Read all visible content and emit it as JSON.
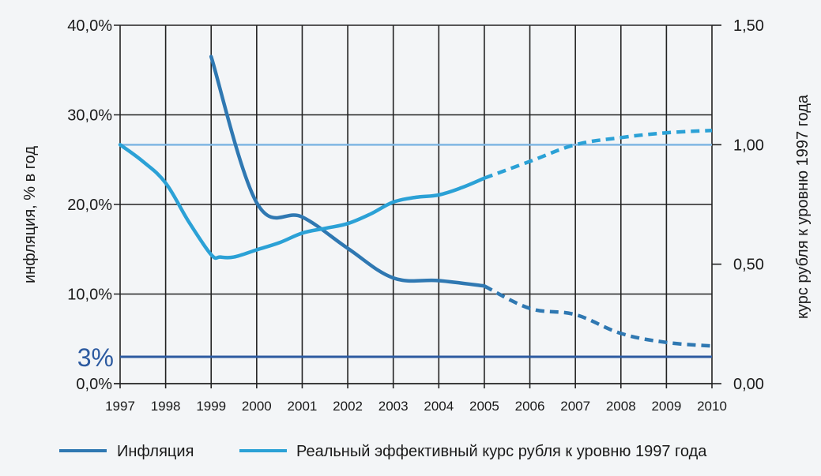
{
  "colors": {
    "background": "#f3f5f7",
    "grid": "#222222",
    "inflation": "#2f78b2",
    "exchange_rate": "#2ba1d6",
    "baseline": "#7fb6e3",
    "target": "#2c5aa0",
    "text": "#1a1a1a"
  },
  "chart_data": {
    "type": "line",
    "x": [
      1997,
      1998,
      1999,
      2000,
      2001,
      2002,
      2003,
      2004,
      2005,
      2006,
      2007,
      2008,
      2009,
      2010
    ],
    "x_tick_labels": [
      "1997",
      "1998",
      "1999",
      "2000",
      "2001",
      "2002",
      "2003",
      "2004",
      "2005",
      "2006",
      "2007",
      "2008",
      "2009",
      "2010"
    ],
    "y_left": {
      "label": "инфляция, % в год",
      "range": [
        0,
        40
      ],
      "ticks": [
        0,
        10,
        20,
        30,
        40
      ],
      "tick_labels": [
        "0,0%",
        "10,0%",
        "20,0%",
        "30,0%",
        "40,0%"
      ]
    },
    "y_right": {
      "label": "курс рубля к уровню 1997 года",
      "range": [
        0,
        1.5
      ],
      "ticks": [
        0,
        0.5,
        1.0,
        1.5
      ],
      "tick_labels": [
        "0,00",
        "0,50",
        "1,00",
        "1,50"
      ]
    },
    "series": [
      {
        "name": "Инфляция",
        "axis": "left",
        "points_solid": [
          [
            1999,
            36.5
          ],
          [
            2000,
            20.2
          ],
          [
            2001,
            18.6
          ],
          [
            2002,
            15.1
          ],
          [
            2003,
            11.8
          ],
          [
            2004,
            11.5
          ],
          [
            2005,
            10.9
          ]
        ],
        "points_dashed": [
          [
            2005,
            10.9
          ],
          [
            2006,
            8.4
          ],
          [
            2007,
            7.7
          ],
          [
            2008,
            5.6
          ],
          [
            2009,
            4.6
          ],
          [
            2010,
            4.2
          ]
        ]
      },
      {
        "name": "Реальный эффективный курс рубля к уровню 1997 года",
        "axis": "right",
        "points_solid": [
          [
            1997,
            1.0
          ],
          [
            1997.5,
            0.93
          ],
          [
            1998,
            0.84
          ],
          [
            1998.5,
            0.68
          ],
          [
            1999,
            0.54
          ],
          [
            1999.2,
            0.53
          ],
          [
            1999.5,
            0.53
          ],
          [
            2000,
            0.56
          ],
          [
            2000.5,
            0.59
          ],
          [
            2001,
            0.63
          ],
          [
            2001.5,
            0.65
          ],
          [
            2002,
            0.67
          ],
          [
            2002.5,
            0.71
          ],
          [
            2003,
            0.76
          ],
          [
            2003.5,
            0.78
          ],
          [
            2004,
            0.79
          ],
          [
            2004.5,
            0.82
          ],
          [
            2005,
            0.86
          ]
        ],
        "points_dashed": [
          [
            2005,
            0.86
          ],
          [
            2006,
            0.93
          ],
          [
            2007,
            1.0
          ],
          [
            2008,
            1.03
          ],
          [
            2009,
            1.05
          ],
          [
            2010,
            1.06
          ]
        ]
      }
    ],
    "reference_lines": [
      {
        "name": "baseline-1997",
        "axis": "right",
        "value": 1.0
      },
      {
        "name": "inflation-target",
        "axis": "left",
        "value": 3,
        "label": "3%"
      }
    ],
    "legend": {
      "position": "bottom-left",
      "entries": [
        "Инфляция",
        "Реальный эффективный курс рубля к уровню 1997 года"
      ]
    },
    "grid": true
  }
}
